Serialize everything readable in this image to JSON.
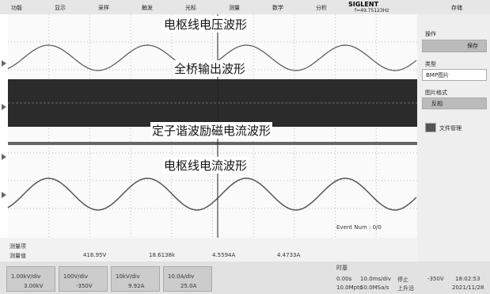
{
  "menu": [
    "功能",
    "显示",
    "采样",
    "触发",
    "光标",
    "测量",
    "数学",
    "分析"
  ],
  "brand": "SIGLENT",
  "frequency": "f=49.75123Hz",
  "save_menu": "存储",
  "side_panel": {
    "operation": "操作",
    "save": "保存",
    "type_label": "类型",
    "type_value": "BMP图片",
    "format_label": "图片格式",
    "format_value": "反相",
    "file_manager": "文件管理"
  },
  "wave_labels": [
    "电枢线电压波形",
    "全桥输出波形",
    "定子谐波励磁电流波形",
    "电枢线电流波形"
  ],
  "event": "Event Num : 0/0",
  "measure": {
    "row_labels": [
      "测量项",
      "测量值"
    ],
    "values": [
      "418.95V",
      "18.6138k",
      "4.5594A",
      "4.4733A"
    ]
  },
  "channels": [
    {
      "scale": "1.00kV/div",
      "offset": "3.00kV"
    },
    {
      "scale": "100V/div",
      "offset": "-350V"
    },
    {
      "scale": "10kV/div",
      "offset": "9.92A"
    },
    {
      "scale": "10.0A/div",
      "offset": "25.0A"
    }
  ],
  "timebase": {
    "label": "时基",
    "delay": "0.00s",
    "scale": "10.0ms/div",
    "points": "10.0Mpts",
    "rate": "50.0MSa/s"
  },
  "trigger": {
    "state": "停止",
    "edge": "上升沿",
    "level": "-350V"
  },
  "clock": {
    "time": "18:02:53",
    "date": "2021/11/28"
  }
}
